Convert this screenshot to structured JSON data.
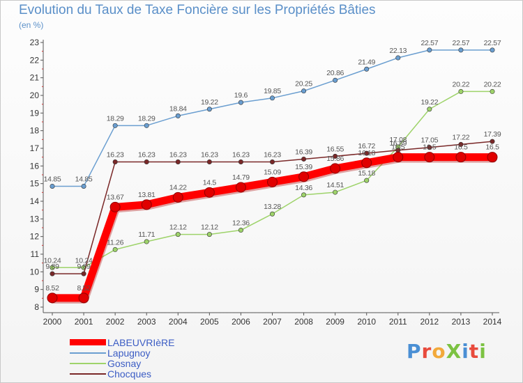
{
  "title": "Evolution du Taux de Taxe Foncière sur les Propriétés Bâties",
  "unit_label": "(en %)",
  "logo": {
    "text": "ProXiti",
    "letters": [
      {
        "ch": "P",
        "color": "#4a8fd4"
      },
      {
        "ch": "r",
        "color": "#e84a3c"
      },
      {
        "ch": "o",
        "color": "#f2a93b"
      },
      {
        "ch": "X",
        "color": "#7cc242"
      },
      {
        "ch": "i",
        "color": "#4a8fd4"
      },
      {
        "ch": "t",
        "color": "#e84a3c"
      },
      {
        "ch": "i",
        "color": "#7cc242"
      }
    ]
  },
  "chart_data": {
    "type": "line",
    "title": "Evolution du Taux de Taxe Foncière sur les Propriétés Bâties",
    "ylabel": "(en %)",
    "xlabel": "",
    "ylim": [
      8,
      23
    ],
    "yticks": [
      8,
      9,
      10,
      11,
      12,
      13,
      14,
      15,
      16,
      17,
      18,
      19,
      20,
      21,
      22,
      23
    ],
    "grid": false,
    "legend_position": "bottom-left",
    "x": [
      "2000",
      "2001",
      "2002",
      "2003",
      "2004",
      "2005",
      "2006",
      "2007",
      "2008",
      "2009",
      "2010",
      "2011",
      "2012",
      "2013",
      "2014"
    ],
    "series": [
      {
        "name": "LABEUVRIèRE",
        "color": "#ff0000",
        "emphasis": true,
        "values": [
          8.52,
          8.52,
          13.67,
          13.81,
          14.22,
          14.5,
          14.79,
          15.09,
          15.39,
          15.86,
          16.18,
          16.5,
          16.5,
          16.5,
          16.5
        ],
        "labels": [
          "8.52",
          "8.52",
          "13.67",
          "13.81",
          "14.22",
          "14.5",
          "14.79",
          "15.09",
          "15.39",
          "15.86",
          "16.18",
          "16.5",
          "16.5",
          "16.5",
          "16.5"
        ]
      },
      {
        "name": "Lapugnoy",
        "color": "#6a9ed0",
        "values": [
          14.85,
          14.85,
          18.29,
          18.29,
          18.84,
          19.22,
          19.6,
          19.85,
          20.25,
          20.86,
          21.49,
          22.13,
          22.57,
          22.57,
          22.57
        ],
        "labels": [
          "14.85",
          "14.85",
          "18.29",
          "18.29",
          "18.84",
          "19.22",
          "19.6",
          "19.85",
          "20.25",
          "20.86",
          "21.49",
          "22.13",
          "22.57",
          "22.57",
          "22.57"
        ]
      },
      {
        "name": "Gosnay",
        "color": "#9ed36a",
        "values": [
          10.24,
          10.24,
          11.26,
          11.71,
          12.12,
          12.12,
          12.36,
          13.28,
          14.36,
          14.51,
          15.18,
          17.08,
          19.22,
          20.22,
          20.22
        ],
        "labels": [
          "10.24",
          "10.24",
          "11.26",
          "11.71",
          "12.12",
          "12.12",
          "12.36",
          "13.28",
          "14.36",
          "14.51",
          "15.18",
          "17.08",
          "19.22",
          "20.22",
          "20.22"
        ]
      },
      {
        "name": "Chocques",
        "color": "#7a2828",
        "values": [
          9.89,
          9.89,
          16.23,
          16.23,
          16.23,
          16.23,
          16.23,
          16.23,
          16.39,
          16.55,
          16.72,
          16.89,
          17.05,
          17.22,
          17.39
        ],
        "labels": [
          "9.89",
          "9.89",
          "16.23",
          "16.23",
          "16.23",
          "16.23",
          "16.23",
          "16.23",
          "16.39",
          "16.55",
          "16.72",
          "16.89",
          "17.05",
          "17.22",
          "17.39"
        ]
      }
    ]
  }
}
